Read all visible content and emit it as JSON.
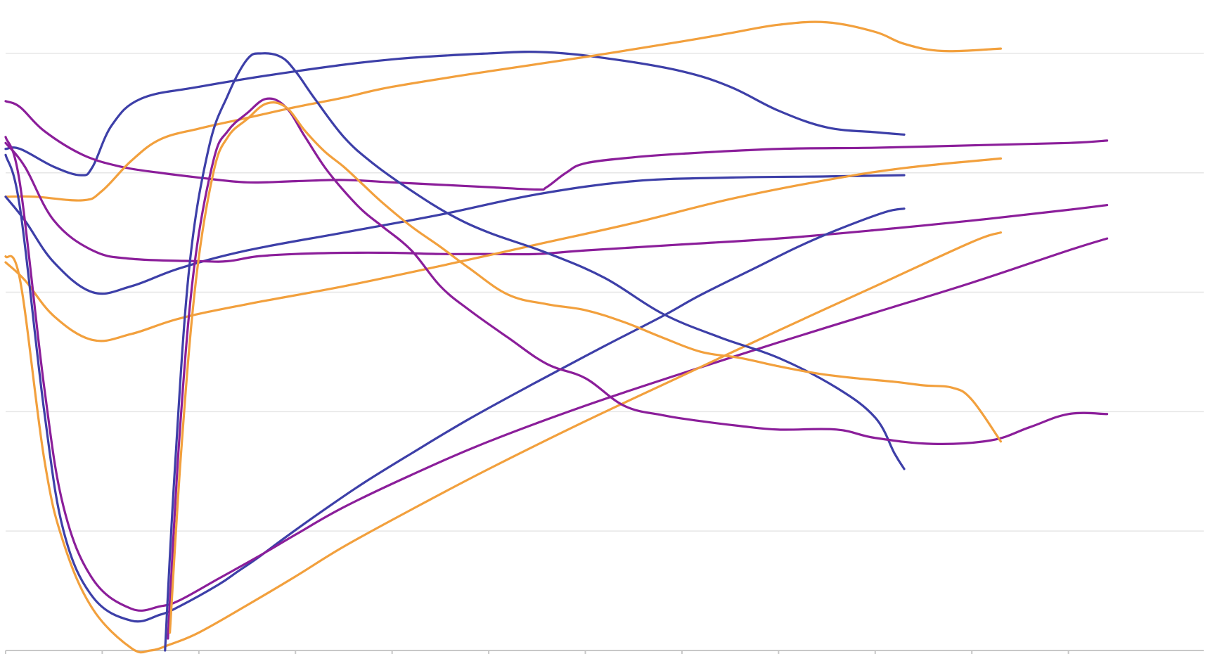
{
  "colors": {
    "blue": "#3d3fa8",
    "purple": "#8b1e9a",
    "orange": "#f2a03d",
    "grid": "#e6e6e6",
    "axis": "#c8c8c8"
  },
  "chart_data": {
    "type": "line",
    "title": "",
    "xlabel": "",
    "ylabel": "",
    "xlim": [
      0,
      12.4
    ],
    "ylim": [
      0,
      5.4
    ],
    "grid": true,
    "y_grid_values": [
      1,
      2,
      3,
      4,
      5
    ],
    "x_ticks": [
      0,
      1,
      2,
      3,
      4,
      5,
      6,
      7,
      8,
      9,
      10,
      11
    ],
    "legend": "none",
    "series": [
      {
        "color": "blue",
        "x": [
          0,
          0.15,
          0.5,
          0.78,
          0.9,
          1.1,
          1.4,
          2,
          3,
          4,
          5,
          5.6,
          6.3,
          7,
          7.5,
          8,
          8.5,
          9,
          9.3
        ],
        "y": [
          4.2,
          4.2,
          4.05,
          3.98,
          4.05,
          4.4,
          4.62,
          4.72,
          4.85,
          4.95,
          5,
          5.01,
          4.95,
          4.85,
          4.72,
          4.52,
          4.38,
          4.34,
          4.32
        ]
      },
      {
        "color": "purple",
        "x": [
          0,
          0.15,
          0.4,
          0.8,
          1.2,
          1.6,
          2,
          2.5,
          3,
          3.5,
          4,
          4.5,
          5,
          5.5,
          5.6,
          5.8,
          6,
          6.5,
          7,
          8,
          9,
          10,
          11,
          11.4
        ],
        "y": [
          4.6,
          4.55,
          4.35,
          4.15,
          4.05,
          4.0,
          3.96,
          3.92,
          3.93,
          3.94,
          3.92,
          3.9,
          3.88,
          3.86,
          3.88,
          4.0,
          4.08,
          4.13,
          4.16,
          4.2,
          4.21,
          4.23,
          4.25,
          4.27
        ]
      },
      {
        "color": "orange",
        "x": [
          0,
          0.3,
          0.8,
          1.0,
          1.3,
          1.6,
          2,
          2.5,
          3,
          3.5,
          4,
          5,
          6,
          7,
          7.5,
          8,
          8.5,
          9,
          9.3,
          9.7,
          10.3
        ],
        "y": [
          3.8,
          3.8,
          3.77,
          3.85,
          4.1,
          4.28,
          4.37,
          4.46,
          4.55,
          4.63,
          4.72,
          4.85,
          4.97,
          5.1,
          5.17,
          5.24,
          5.26,
          5.18,
          5.08,
          5.02,
          5.04
        ]
      },
      {
        "color": "blue",
        "x": [
          0,
          0.2,
          0.5,
          0.9,
          1.3,
          1.8,
          2.5,
          3.5,
          4.5,
          5.5,
          6.5,
          7.5,
          8.5,
          9.3
        ],
        "y": [
          3.8,
          3.6,
          3.25,
          3.0,
          3.05,
          3.2,
          3.35,
          3.5,
          3.65,
          3.82,
          3.93,
          3.96,
          3.97,
          3.98
        ]
      },
      {
        "color": "purple",
        "x": [
          0,
          0.2,
          0.5,
          0.9,
          1.3,
          2,
          2.3,
          2.6,
          3,
          3.5,
          4,
          4.5,
          5,
          5.5,
          6,
          7,
          8,
          9,
          10,
          11,
          11.4
        ],
        "y": [
          4.25,
          4.05,
          3.6,
          3.35,
          3.28,
          3.26,
          3.26,
          3.3,
          3.32,
          3.33,
          3.33,
          3.32,
          3.32,
          3.32,
          3.35,
          3.4,
          3.45,
          3.52,
          3.6,
          3.69,
          3.73
        ]
      },
      {
        "color": "orange",
        "x": [
          0,
          0.2,
          0.5,
          0.9,
          1.3,
          1.8,
          2.5,
          3.5,
          4.5,
          5.5,
          6.5,
          7.5,
          8.5,
          9.3,
          10.3
        ],
        "y": [
          3.25,
          3.1,
          2.8,
          2.6,
          2.65,
          2.78,
          2.9,
          3.05,
          3.22,
          3.4,
          3.58,
          3.78,
          3.94,
          4.04,
          4.12
        ]
      },
      {
        "color": "blue",
        "x": [
          0,
          0.15,
          0.4,
          0.6,
          0.9,
          1.3,
          1.6,
          1.8,
          2.2,
          2.4,
          2.6,
          2.9,
          3.3,
          3.7,
          4.2,
          4.8,
          5.5,
          6.2,
          6.8,
          7.2,
          7.8,
          8.2,
          8.6,
          9.1,
          9.3
        ],
        "y": [
          4.15,
          3.7,
          2.0,
          1.0,
          0.45,
          0.25,
          0.3,
          0.37,
          0.55,
          0.66,
          0.77,
          0.95,
          1.18,
          1.4,
          1.65,
          1.94,
          2.25,
          2.55,
          2.8,
          2.98,
          3.22,
          3.38,
          3.52,
          3.67,
          3.7
        ]
      },
      {
        "color": "purple",
        "x": [
          0,
          0.15,
          0.4,
          0.6,
          0.9,
          1.3,
          1.6,
          1.8,
          2.2,
          2.6,
          3.0,
          3.5,
          4.2,
          5.0,
          6.0,
          7.0,
          8.0,
          9.0,
          10.0,
          11.0,
          11.4
        ],
        "y": [
          4.3,
          3.9,
          2.2,
          1.2,
          0.6,
          0.35,
          0.37,
          0.42,
          0.6,
          0.78,
          0.97,
          1.2,
          1.47,
          1.75,
          2.05,
          2.32,
          2.58,
          2.83,
          3.08,
          3.35,
          3.45
        ]
      },
      {
        "color": "orange",
        "x": [
          0,
          0.15,
          0.4,
          0.6,
          0.9,
          1.3,
          1.5,
          1.7,
          2.0,
          2.5,
          3.0,
          3.5,
          4.2,
          5.0,
          6.0,
          7.0,
          8.0,
          9.0,
          10.0,
          10.3
        ],
        "y": [
          3.3,
          3.1,
          1.6,
          0.9,
          0.35,
          0.02,
          0.0,
          0.05,
          0.15,
          0.38,
          0.62,
          0.87,
          1.18,
          1.52,
          1.92,
          2.3,
          2.68,
          3.05,
          3.42,
          3.5
        ]
      },
      {
        "color": "blue",
        "x": [
          1.65,
          1.75,
          1.9,
          2.1,
          2.3,
          2.5,
          2.65,
          2.85,
          3.0,
          3.2,
          3.5,
          3.8,
          4.2,
          4.6,
          5.0,
          5.6,
          6.2,
          6.8,
          7.4,
          8.0,
          8.6,
          9.0,
          9.2,
          9.3
        ],
        "y": [
          0.0,
          1.5,
          3.2,
          4.2,
          4.65,
          4.95,
          5.0,
          4.97,
          4.85,
          4.62,
          4.3,
          4.08,
          3.85,
          3.65,
          3.5,
          3.33,
          3.12,
          2.82,
          2.62,
          2.45,
          2.2,
          1.95,
          1.65,
          1.52
        ]
      },
      {
        "color": "purple",
        "x": [
          1.68,
          1.8,
          1.95,
          2.15,
          2.3,
          2.5,
          2.7,
          2.9,
          3.1,
          3.3,
          3.5,
          3.7,
          3.9,
          4.2,
          4.5,
          4.8,
          5.2,
          5.6,
          6.0,
          6.4,
          6.8,
          7.2,
          7.6,
          8.0,
          8.6,
          9.0,
          9.6,
          10.2,
          10.6,
          11.0,
          11.4
        ],
        "y": [
          0.1,
          1.8,
          3.2,
          4.1,
          4.35,
          4.5,
          4.62,
          4.55,
          4.3,
          4.05,
          3.85,
          3.68,
          3.55,
          3.35,
          3.05,
          2.85,
          2.62,
          2.4,
          2.28,
          2.05,
          1.97,
          1.92,
          1.88,
          1.85,
          1.85,
          1.78,
          1.73,
          1.76,
          1.87,
          1.98,
          1.98
        ]
      },
      {
        "color": "orange",
        "x": [
          1.7,
          1.82,
          1.97,
          2.15,
          2.3,
          2.5,
          2.7,
          2.9,
          3.1,
          3.3,
          3.5,
          3.7,
          3.9,
          4.2,
          4.5,
          4.8,
          5.2,
          5.6,
          6.0,
          6.4,
          6.8,
          7.2,
          7.6,
          8.0,
          8.4,
          8.8,
          9.2,
          9.5,
          9.8,
          10.0,
          10.3
        ],
        "y": [
          0.15,
          1.7,
          3.1,
          4.0,
          4.3,
          4.45,
          4.58,
          4.55,
          4.35,
          4.18,
          4.05,
          3.9,
          3.75,
          3.55,
          3.38,
          3.2,
          2.98,
          2.9,
          2.85,
          2.75,
          2.62,
          2.5,
          2.45,
          2.38,
          2.32,
          2.28,
          2.25,
          2.22,
          2.2,
          2.1,
          1.75
        ]
      }
    ]
  }
}
